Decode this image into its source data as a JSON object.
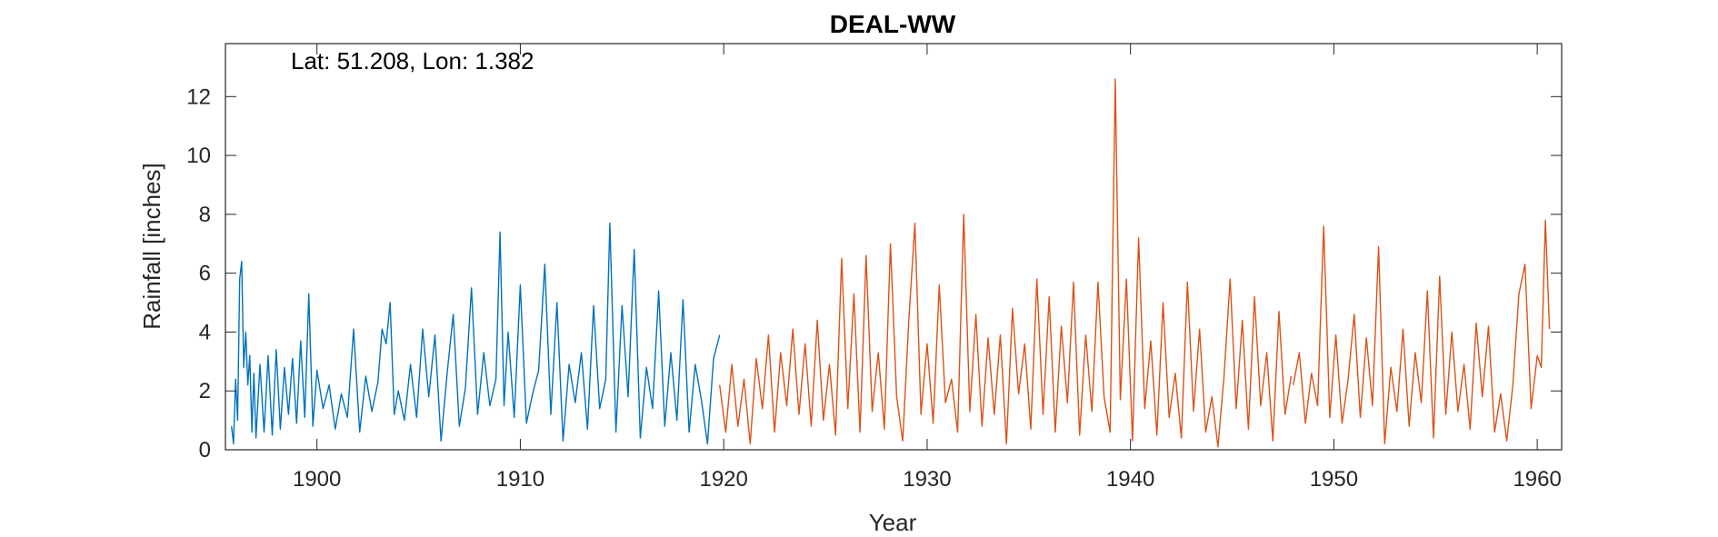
{
  "chart_data": {
    "type": "line",
    "title": "DEAL-WW",
    "annotation": "Lat: 51.208, Lon: 1.382",
    "xlabel": "Year",
    "ylabel": "Rainfall [inches]",
    "xlim": [
      1895.5,
      1961.2
    ],
    "ylim": [
      0,
      13.8
    ],
    "xticks": [
      1900,
      1910,
      1920,
      1930,
      1940,
      1950,
      1960
    ],
    "yticks": [
      0,
      2,
      4,
      6,
      8,
      10,
      12
    ],
    "grid": false,
    "series": [
      {
        "color": "#0072BD",
        "x": [
          1895.8,
          1895.9,
          1896.0,
          1896.1,
          1896.2,
          1896.3,
          1896.4,
          1896.5,
          1896.6,
          1896.7,
          1896.8,
          1896.9,
          1897.0,
          1897.2,
          1897.4,
          1897.6,
          1897.8,
          1898.0,
          1898.2,
          1898.4,
          1898.6,
          1898.8,
          1899.0,
          1899.2,
          1899.4,
          1899.6,
          1899.8,
          1900.0,
          1900.3,
          1900.6,
          1900.9,
          1901.2,
          1901.5,
          1901.8,
          1902.1,
          1902.4,
          1902.7,
          1903.0,
          1903.2,
          1903.4,
          1903.6,
          1903.8,
          1904.0,
          1904.3,
          1904.6,
          1904.9,
          1905.2,
          1905.5,
          1905.8,
          1906.1,
          1906.4,
          1906.7,
          1907.0,
          1907.3,
          1907.6,
          1907.9,
          1908.2,
          1908.5,
          1908.8,
          1909.0,
          1909.2,
          1909.4,
          1909.7,
          1910.0,
          1910.3,
          1910.6,
          1910.9,
          1911.2,
          1911.5,
          1911.8,
          1912.1,
          1912.4,
          1912.7,
          1913.0,
          1913.3,
          1913.6,
          1913.9,
          1914.2,
          1914.4,
          1914.7,
          1915.0,
          1915.3,
          1915.6,
          1915.9,
          1916.2,
          1916.5,
          1916.8,
          1917.1,
          1917.4,
          1917.7,
          1918.0,
          1918.3,
          1918.6,
          1918.9,
          1919.2,
          1919.5,
          1919.8
        ],
        "y": [
          0.8,
          0.2,
          2.4,
          1.0,
          5.8,
          6.4,
          2.8,
          4.0,
          2.2,
          3.2,
          0.6,
          2.6,
          0.4,
          2.9,
          0.6,
          3.2,
          0.5,
          3.4,
          0.7,
          2.8,
          1.2,
          3.1,
          0.9,
          3.7,
          1.1,
          5.3,
          0.8,
          2.7,
          1.4,
          2.2,
          0.7,
          1.9,
          1.1,
          4.1,
          0.6,
          2.5,
          1.3,
          2.3,
          4.1,
          3.6,
          5.0,
          1.2,
          2.0,
          1.0,
          2.9,
          1.1,
          4.1,
          1.8,
          3.9,
          0.3,
          2.6,
          4.6,
          0.8,
          2.1,
          5.5,
          1.2,
          3.3,
          1.5,
          2.4,
          7.4,
          1.5,
          4.0,
          1.1,
          5.6,
          0.9,
          1.9,
          2.7,
          6.3,
          1.2,
          5.0,
          0.3,
          2.9,
          1.6,
          3.3,
          0.7,
          4.9,
          1.4,
          2.4,
          7.7,
          0.6,
          4.9,
          1.8,
          6.8,
          0.4,
          2.8,
          1.4,
          5.4,
          0.8,
          3.3,
          1.0,
          5.1,
          0.6,
          2.9,
          1.7,
          0.2,
          3.1,
          3.9
        ]
      },
      {
        "color": "#D95319",
        "x": [
          1919.8,
          1920.1,
          1920.4,
          1920.7,
          1921.0,
          1921.3,
          1921.6,
          1921.9,
          1922.2,
          1922.5,
          1922.8,
          1923.1,
          1923.4,
          1923.7,
          1924.0,
          1924.3,
          1924.6,
          1924.9,
          1925.2,
          1925.5,
          1925.8,
          1926.1,
          1926.4,
          1926.7,
          1927.0,
          1927.3,
          1927.6,
          1927.9,
          1928.2,
          1928.5,
          1928.8,
          1929.1,
          1929.4,
          1929.7,
          1930.0,
          1930.3,
          1930.6,
          1930.9,
          1931.2,
          1931.5,
          1931.8,
          1932.1,
          1932.4,
          1932.7,
          1933.0,
          1933.3,
          1933.6,
          1933.9,
          1934.2,
          1934.5,
          1934.8,
          1935.1,
          1935.4,
          1935.7,
          1936.0,
          1936.3,
          1936.6,
          1936.9,
          1937.2,
          1937.5,
          1937.8,
          1938.1,
          1938.4,
          1938.7,
          1939.0,
          1939.25,
          1939.5,
          1939.8,
          1940.1,
          1940.4,
          1940.7,
          1941.0,
          1941.3,
          1941.6,
          1941.9,
          1942.2,
          1942.5,
          1942.8,
          1943.1,
          1943.4,
          1943.7,
          1944.0,
          1944.3,
          1944.6,
          1944.9,
          1945.2,
          1945.5,
          1945.8,
          1946.1,
          1946.4,
          1946.7,
          1947.0,
          1947.3,
          1947.6,
          1947.9
        ],
        "y": [
          2.2,
          0.6,
          2.9,
          0.8,
          2.4,
          0.2,
          3.1,
          1.4,
          3.9,
          0.6,
          3.3,
          1.5,
          4.1,
          1.2,
          3.6,
          0.8,
          4.4,
          1.0,
          2.9,
          0.5,
          6.5,
          1.4,
          5.3,
          0.6,
          6.6,
          1.3,
          3.3,
          0.7,
          7.0,
          1.8,
          0.3,
          4.4,
          7.7,
          1.2,
          3.6,
          0.9,
          5.6,
          1.6,
          2.4,
          0.6,
          8.0,
          1.3,
          4.6,
          0.8,
          3.8,
          1.2,
          3.9,
          0.2,
          4.8,
          1.9,
          3.6,
          0.7,
          5.8,
          1.2,
          5.2,
          0.6,
          4.2,
          1.6,
          5.7,
          0.5,
          3.9,
          1.3,
          5.7,
          1.8,
          0.6,
          12.6,
          1.7,
          5.8,
          0.3,
          7.2,
          1.4,
          3.7,
          0.5,
          5.0,
          1.1,
          2.6,
          0.4,
          5.7,
          1.3,
          4.1,
          0.6,
          1.8,
          0.1,
          2.5,
          5.8,
          1.4,
          4.4,
          0.7,
          5.2,
          1.5,
          3.3,
          0.3,
          4.7,
          1.2,
          2.5
        ]
      },
      {
        "color": "#D95319",
        "x": [
          1948.0,
          1948.3,
          1948.6,
          1948.9,
          1949.2,
          1949.5,
          1949.8,
          1950.1,
          1950.4,
          1950.7,
          1951.0,
          1951.3,
          1951.6,
          1951.9,
          1952.2,
          1952.5,
          1952.8,
          1953.1,
          1953.4,
          1953.7,
          1954.0,
          1954.3,
          1954.6,
          1954.9,
          1955.2,
          1955.5,
          1955.8,
          1956.1,
          1956.4,
          1956.7,
          1957.0,
          1957.3,
          1957.6,
          1957.9,
          1958.2,
          1958.5,
          1958.8,
          1959.1,
          1959.4,
          1959.7,
          1960.0,
          1960.2,
          1960.4,
          1960.6
        ],
        "y": [
          2.2,
          3.3,
          0.9,
          2.6,
          1.5,
          7.6,
          1.1,
          3.9,
          0.9,
          2.4,
          4.6,
          1.1,
          3.8,
          1.5,
          6.9,
          0.2,
          2.8,
          1.3,
          4.1,
          0.8,
          3.3,
          1.6,
          5.4,
          0.4,
          5.9,
          1.2,
          4.0,
          1.3,
          2.9,
          0.7,
          4.3,
          1.8,
          4.2,
          0.6,
          1.9,
          0.3,
          2.2,
          5.3,
          6.3,
          1.4,
          3.2,
          2.8,
          7.8,
          4.1
        ]
      }
    ]
  }
}
